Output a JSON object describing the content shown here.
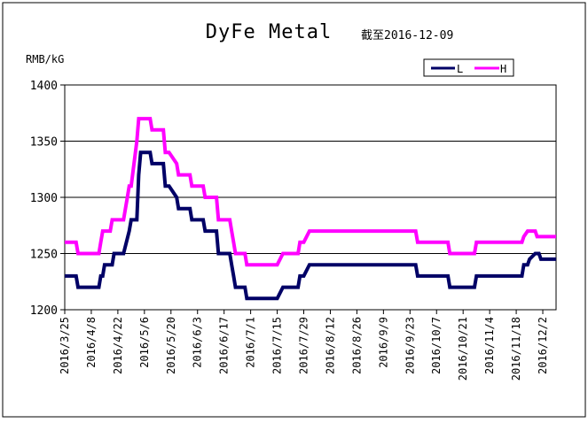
{
  "chart_data": {
    "type": "line",
    "title": "DyFe Metal",
    "subtitle": "截至2016-12-09",
    "ylabel": "RMB/kG",
    "xlabel": "",
    "ylim": [
      1200,
      1400
    ],
    "yticks": [
      1200,
      1250,
      1300,
      1350,
      1400
    ],
    "grid": true,
    "legend_position": "top-right",
    "x_start": "2016/3/25",
    "x_end": "2016/12/9",
    "xtick_labels": [
      "2016/3/25",
      "2016/4/8",
      "2016/4/22",
      "2016/5/6",
      "2016/5/20",
      "2016/6/3",
      "2016/6/17",
      "2016/7/1",
      "2016/7/15",
      "2016/7/29",
      "2016/8/12",
      "2016/8/26",
      "2016/9/9",
      "2016/9/23",
      "2016/10/7",
      "2016/10/21",
      "2016/11/4",
      "2016/11/18",
      "2016/12/2"
    ],
    "series": [
      {
        "name": "L",
        "color": "#000066",
        "points": [
          [
            "2016/3/25",
            1230
          ],
          [
            "2016/3/31",
            1230
          ],
          [
            "2016/4/1",
            1220
          ],
          [
            "2016/4/12",
            1220
          ],
          [
            "2016/4/13",
            1230
          ],
          [
            "2016/4/14",
            1230
          ],
          [
            "2016/4/15",
            1240
          ],
          [
            "2016/4/19",
            1240
          ],
          [
            "2016/4/20",
            1250
          ],
          [
            "2016/4/25",
            1250
          ],
          [
            "2016/4/28",
            1270
          ],
          [
            "2016/4/29",
            1280
          ],
          [
            "2016/5/2",
            1280
          ],
          [
            "2016/5/3",
            1320
          ],
          [
            "2016/5/4",
            1340
          ],
          [
            "2016/5/9",
            1340
          ],
          [
            "2016/5/10",
            1330
          ],
          [
            "2016/5/16",
            1330
          ],
          [
            "2016/5/17",
            1310
          ],
          [
            "2016/5/19",
            1310
          ],
          [
            "2016/5/23",
            1300
          ],
          [
            "2016/5/24",
            1290
          ],
          [
            "2016/5/30",
            1290
          ],
          [
            "2016/5/31",
            1280
          ],
          [
            "2016/6/6",
            1280
          ],
          [
            "2016/6/7",
            1270
          ],
          [
            "2016/6/13",
            1270
          ],
          [
            "2016/6/14",
            1250
          ],
          [
            "2016/6/20",
            1250
          ],
          [
            "2016/6/21",
            1240
          ],
          [
            "2016/6/22",
            1230
          ],
          [
            "2016/6/23",
            1220
          ],
          [
            "2016/6/28",
            1220
          ],
          [
            "2016/6/29",
            1210
          ],
          [
            "2016/7/15",
            1210
          ],
          [
            "2016/7/18",
            1220
          ],
          [
            "2016/7/26",
            1220
          ],
          [
            "2016/7/27",
            1230
          ],
          [
            "2016/7/29",
            1230
          ],
          [
            "2016/8/1",
            1240
          ],
          [
            "2016/9/26",
            1240
          ],
          [
            "2016/9/27",
            1230
          ],
          [
            "2016/10/13",
            1230
          ],
          [
            "2016/10/14",
            1220
          ],
          [
            "2016/10/27",
            1220
          ],
          [
            "2016/10/28",
            1230
          ],
          [
            "2016/11/21",
            1230
          ],
          [
            "2016/11/22",
            1240
          ],
          [
            "2016/11/24",
            1240
          ],
          [
            "2016/11/25",
            1245
          ],
          [
            "2016/11/28",
            1250
          ],
          [
            "2016/11/30",
            1250
          ],
          [
            "2016/12/1",
            1245
          ],
          [
            "2016/12/9",
            1245
          ]
        ]
      },
      {
        "name": "H",
        "color": "#ff00ff",
        "points": [
          [
            "2016/3/25",
            1260
          ],
          [
            "2016/3/31",
            1260
          ],
          [
            "2016/4/1",
            1250
          ],
          [
            "2016/4/12",
            1250
          ],
          [
            "2016/4/13",
            1260
          ],
          [
            "2016/4/14",
            1270
          ],
          [
            "2016/4/18",
            1270
          ],
          [
            "2016/4/19",
            1280
          ],
          [
            "2016/4/25",
            1280
          ],
          [
            "2016/4/27",
            1300
          ],
          [
            "2016/4/28",
            1310
          ],
          [
            "2016/4/29",
            1310
          ],
          [
            "2016/5/2",
            1350
          ],
          [
            "2016/5/3",
            1370
          ],
          [
            "2016/5/9",
            1370
          ],
          [
            "2016/5/10",
            1360
          ],
          [
            "2016/5/16",
            1360
          ],
          [
            "2016/5/17",
            1340
          ],
          [
            "2016/5/19",
            1340
          ],
          [
            "2016/5/23",
            1330
          ],
          [
            "2016/5/24",
            1320
          ],
          [
            "2016/5/30",
            1320
          ],
          [
            "2016/5/31",
            1310
          ],
          [
            "2016/6/6",
            1310
          ],
          [
            "2016/6/7",
            1300
          ],
          [
            "2016/6/13",
            1300
          ],
          [
            "2016/6/14",
            1280
          ],
          [
            "2016/6/20",
            1280
          ],
          [
            "2016/6/21",
            1270
          ],
          [
            "2016/6/22",
            1260
          ],
          [
            "2016/6/23",
            1250
          ],
          [
            "2016/6/28",
            1250
          ],
          [
            "2016/6/29",
            1240
          ],
          [
            "2016/7/15",
            1240
          ],
          [
            "2016/7/18",
            1250
          ],
          [
            "2016/7/26",
            1250
          ],
          [
            "2016/7/27",
            1260
          ],
          [
            "2016/7/29",
            1260
          ],
          [
            "2016/8/1",
            1270
          ],
          [
            "2016/9/26",
            1270
          ],
          [
            "2016/9/27",
            1260
          ],
          [
            "2016/10/13",
            1260
          ],
          [
            "2016/10/14",
            1250
          ],
          [
            "2016/10/27",
            1250
          ],
          [
            "2016/10/28",
            1260
          ],
          [
            "2016/11/21",
            1260
          ],
          [
            "2016/11/22",
            1265
          ],
          [
            "2016/11/24",
            1270
          ],
          [
            "2016/11/28",
            1270
          ],
          [
            "2016/11/29",
            1265
          ],
          [
            "2016/12/9",
            1265
          ]
        ]
      }
    ]
  }
}
